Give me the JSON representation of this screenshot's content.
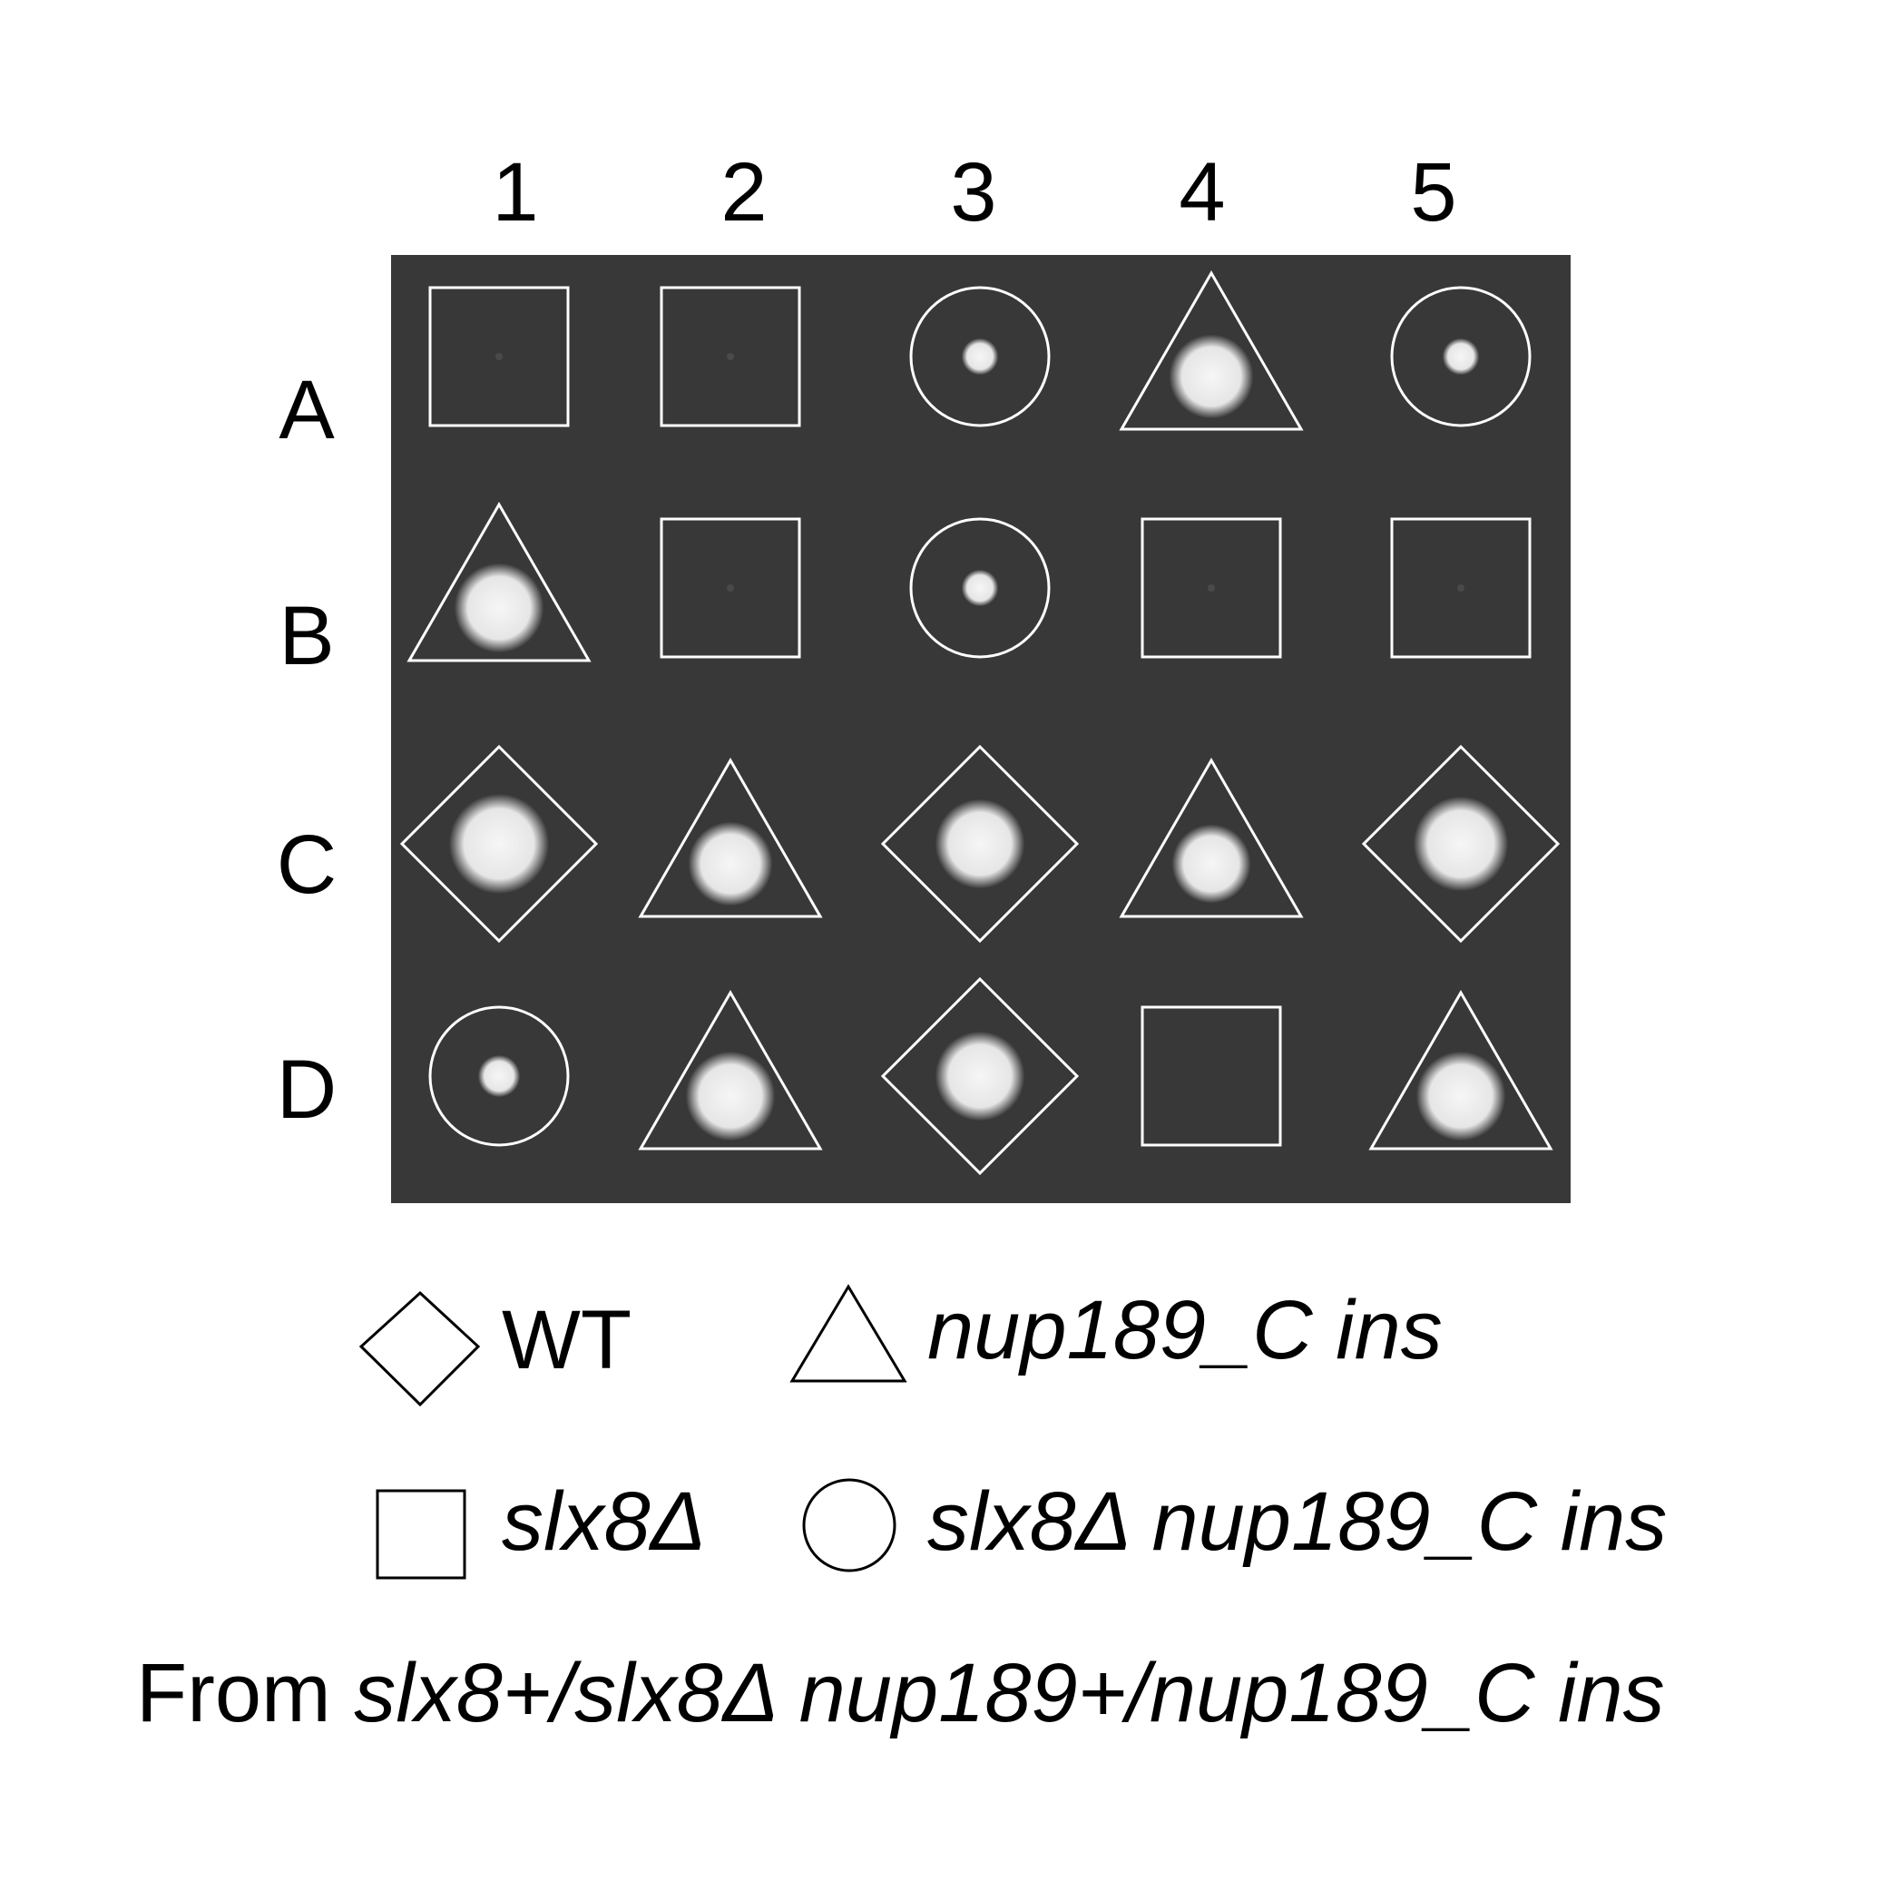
{
  "figure": {
    "background_color": "#ffffff",
    "plate_color": "#383838",
    "outline_color": "#ffffff",
    "colony_color": "#f4f4f4"
  },
  "column_labels": [
    "1",
    "2",
    "3",
    "4",
    "5"
  ],
  "row_labels": [
    "A",
    "B",
    "C",
    "D"
  ],
  "genotype_shapes": {
    "WT": "diamond",
    "nup189_C ins": "triangle",
    "slx8Δ": "square",
    "slx8Δ nup189_C ins": "circle"
  },
  "grid": [
    [
      "slx8Δ",
      "slx8Δ",
      "slx8Δ nup189_C ins",
      "nup189_C ins",
      "slx8Δ nup189_C ins"
    ],
    [
      "nup189_C ins",
      "slx8Δ",
      "slx8Δ nup189_C ins",
      "slx8Δ",
      "slx8Δ"
    ],
    [
      "WT",
      "nup189_C ins",
      "WT",
      "nup189_C ins",
      "WT"
    ],
    [
      "slx8Δ nup189_C ins",
      "nup189_C ins",
      "WT",
      "slx8Δ",
      "nup189_C ins"
    ]
  ],
  "colony_size_relative": [
    [
      0.05,
      0.05,
      0.35,
      0.8,
      0.35
    ],
    [
      0.85,
      0.05,
      0.35,
      0.05,
      0.05
    ],
    [
      0.95,
      0.8,
      0.85,
      0.75,
      0.9
    ],
    [
      0.4,
      0.85,
      0.85,
      0.0,
      0.85
    ]
  ],
  "legend": {
    "wt_label": "WT",
    "nup_label": "nup189_C ins",
    "slx8_label": "slx8Δ",
    "double_label": "slx8Δ nup189_C ins",
    "wt_icon": "diamond-icon",
    "nup_icon": "triangle-icon",
    "slx8_icon": "square-icon",
    "double_icon": "circle-icon"
  },
  "caption": {
    "prefix": "From ",
    "genotype": "slx8+/slx8Δ nup189+/nup189_C ins"
  }
}
